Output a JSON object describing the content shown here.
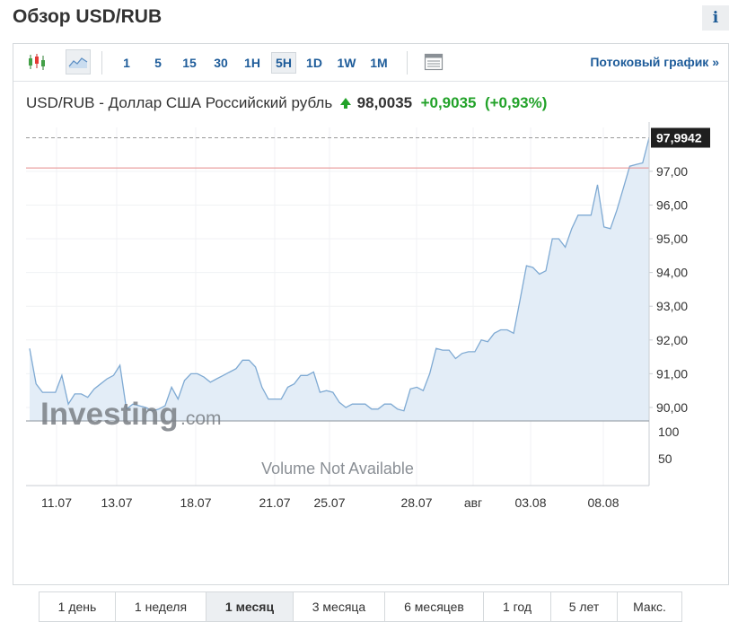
{
  "header": {
    "title": "Обзор USD/RUB",
    "info_icon": "i"
  },
  "toolbar": {
    "timeframes": [
      "1",
      "5",
      "15",
      "30",
      "1H",
      "5H",
      "1D",
      "1W",
      "1M"
    ],
    "active_timeframe": "5H",
    "stream_link": "Потоковый график »",
    "icons": [
      "candlestick-icon",
      "area-chart-icon",
      "layout-icon"
    ]
  },
  "quote": {
    "name": "USD/RUB - Доллар США Российский рубль",
    "price": "98,0035",
    "change": "+0,9035",
    "change_pct": "(+0,93%)"
  },
  "chart_data": {
    "type": "area",
    "title": "",
    "x_labels": [
      "11.07",
      "13.07",
      "18.07",
      "21.07",
      "25.07",
      "28.07",
      "авг",
      "03.08",
      "08.08"
    ],
    "y_ticks": [
      "97,00",
      "96,00",
      "95,00",
      "94,00",
      "93,00",
      "92,00",
      "91,00",
      "90,00"
    ],
    "ylim": [
      89.6,
      98.3
    ],
    "last_value_label": "97,9942",
    "last_value": 97.9942,
    "prev_close_value": 97.1,
    "volume_ticks": [
      "100",
      "50"
    ],
    "volume_note": "Volume Not Available",
    "watermark": "Investing.com",
    "line_color": "#7faad3",
    "fill_color": "#e3edf7",
    "prev_close_color": "#e58b8b",
    "values": [
      91.75,
      90.7,
      90.45,
      90.45,
      90.45,
      90.95,
      90.1,
      90.4,
      90.4,
      90.3,
      90.55,
      90.7,
      90.85,
      90.95,
      91.25,
      89.95,
      90.1,
      90.05,
      90.0,
      89.9,
      89.95,
      90.05,
      90.6,
      90.25,
      90.8,
      91.0,
      91.0,
      90.9,
      90.75,
      90.85,
      90.95,
      91.05,
      91.15,
      91.4,
      91.4,
      91.2,
      90.6,
      90.25,
      90.25,
      90.25,
      90.6,
      90.7,
      90.95,
      90.95,
      91.05,
      90.45,
      90.5,
      90.45,
      90.15,
      90.0,
      90.1,
      90.1,
      90.1,
      89.95,
      89.95,
      90.1,
      90.1,
      89.95,
      89.9,
      90.55,
      90.6,
      90.5,
      91.0,
      91.75,
      91.7,
      91.7,
      91.45,
      91.6,
      91.65,
      91.65,
      92.0,
      91.95,
      92.2,
      92.3,
      92.3,
      92.2,
      93.2,
      94.2,
      94.15,
      93.95,
      94.05,
      95.0,
      95.0,
      94.75,
      95.3,
      95.7,
      95.7,
      95.7,
      96.6,
      95.35,
      95.3,
      95.85,
      96.5,
      97.15,
      97.2,
      97.25,
      97.9942
    ]
  },
  "periods": {
    "items": [
      "1 день",
      "1 неделя",
      "1 месяц",
      "3 месяца",
      "6 месяцев",
      "1 год",
      "5 лет",
      "Макс."
    ],
    "active": "1 месяц"
  }
}
